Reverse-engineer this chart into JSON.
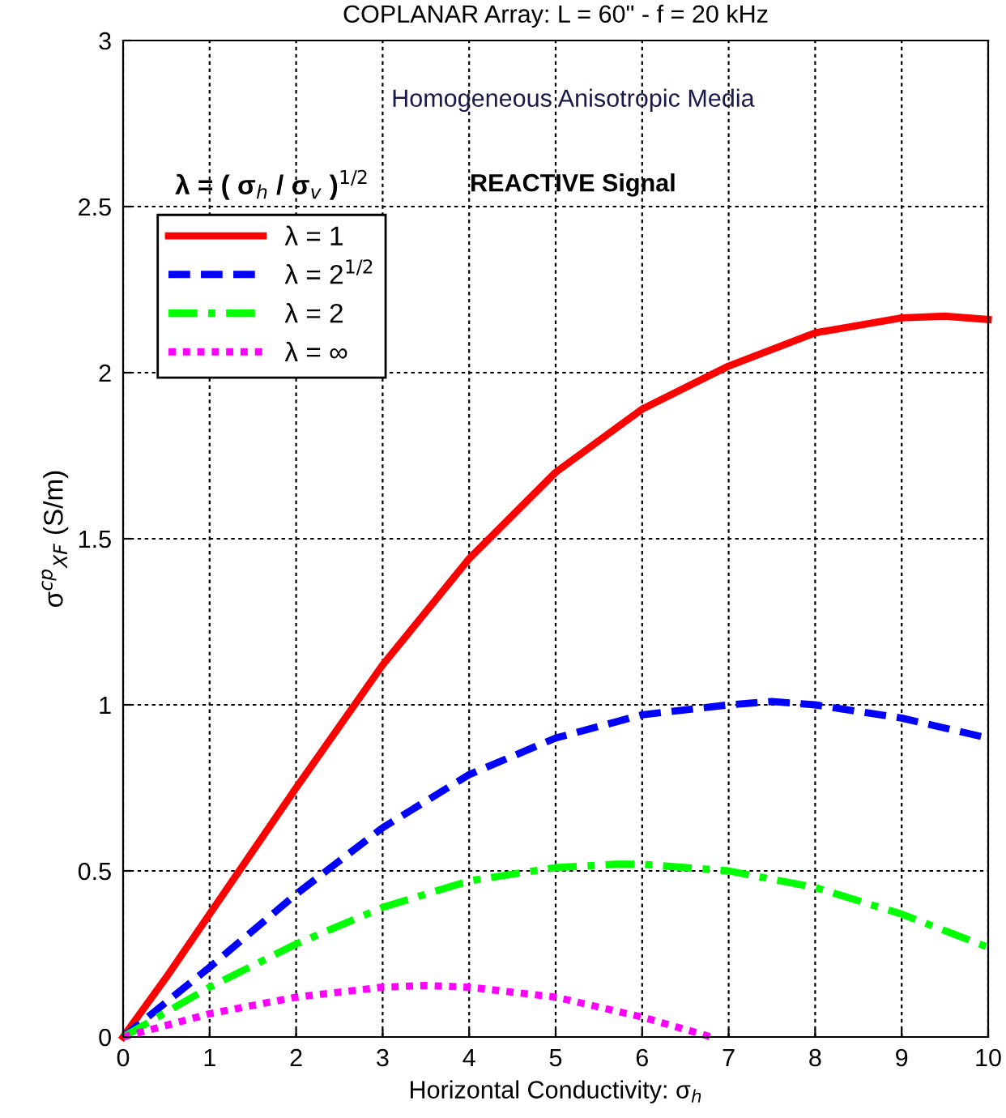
{
  "chart_data": {
    "type": "line",
    "title": "COPLANAR Array: L = 60\" - f = 20 kHz",
    "xlabel": "Horizontal Conductivity: σ$_{h}$",
    "ylabel": "σ$^{cp}$$_{XF}$ (S/m)",
    "legend_title": "λ = ( σ$_{h}$ / σ$_{v}$ )$^{1/2}$",
    "annotations": [
      "Homogeneous Anisotropic Media",
      "REACTIVE Signal"
    ],
    "xlim": [
      0,
      10
    ],
    "ylim": [
      0,
      3
    ],
    "xticks": [
      0,
      1,
      2,
      3,
      4,
      5,
      6,
      7,
      8,
      9,
      10
    ],
    "yticks": [
      0,
      0.5,
      1,
      1.5,
      2,
      2.5,
      3
    ],
    "grid": true,
    "legend": "top left",
    "series": [
      {
        "name": "λ = 1",
        "color": "#ff0000",
        "line_style": "solid",
        "x": [
          0,
          0.5,
          1,
          2,
          3,
          4,
          5,
          6,
          7,
          8,
          9,
          9.5,
          10
        ],
        "values": [
          0,
          0.18,
          0.37,
          0.75,
          1.12,
          1.44,
          1.7,
          1.89,
          2.02,
          2.12,
          2.165,
          2.17,
          2.16
        ]
      },
      {
        "name": "λ = 2$^{1/2}$",
        "color": "#0000ff",
        "line_style": "dashed",
        "x": [
          0,
          1,
          2,
          3,
          4,
          5,
          6,
          7,
          7.5,
          8,
          9,
          10
        ],
        "values": [
          0,
          0.21,
          0.43,
          0.63,
          0.79,
          0.9,
          0.97,
          1.0,
          1.01,
          1.0,
          0.96,
          0.9
        ]
      },
      {
        "name": "λ = 2",
        "color": "#00ff00",
        "line_style": "dashdot",
        "x": [
          0,
          1,
          2,
          3,
          4,
          5,
          5.7,
          6,
          7,
          8,
          9,
          10
        ],
        "values": [
          0,
          0.15,
          0.28,
          0.39,
          0.47,
          0.51,
          0.52,
          0.52,
          0.5,
          0.45,
          0.37,
          0.27
        ]
      },
      {
        "name": "λ = ∞",
        "color": "#ff00ff",
        "line_style": "dotted",
        "x": [
          0,
          1,
          2,
          3,
          3.5,
          4,
          5,
          6,
          6.8
        ],
        "values": [
          0,
          0.07,
          0.12,
          0.15,
          0.155,
          0.15,
          0.12,
          0.06,
          0
        ]
      }
    ]
  }
}
